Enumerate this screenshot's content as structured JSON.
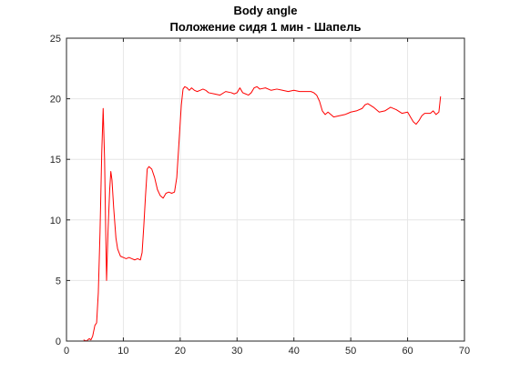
{
  "chart_data": {
    "type": "line",
    "title": "Body angle",
    "subtitle": "Положение сидя 1 мин - Шапель",
    "xlabel": "",
    "ylabel": "",
    "xlim": [
      0,
      70
    ],
    "ylim": [
      0,
      25
    ],
    "xticks": [
      0,
      10,
      20,
      30,
      40,
      50,
      60,
      70
    ],
    "yticks": [
      0,
      5,
      10,
      15,
      20,
      25
    ],
    "grid": true,
    "series": [
      {
        "color": "#ff0000",
        "points": [
          [
            3.0,
            0.1
          ],
          [
            3.5,
            0.0
          ],
          [
            4.0,
            0.2
          ],
          [
            4.3,
            0.1
          ],
          [
            4.6,
            0.4
          ],
          [
            5.0,
            1.3
          ],
          [
            5.3,
            1.5
          ],
          [
            5.6,
            4.0
          ],
          [
            5.9,
            9.0
          ],
          [
            6.2,
            15.5
          ],
          [
            6.45,
            19.2
          ],
          [
            6.7,
            15.0
          ],
          [
            6.9,
            9.0
          ],
          [
            7.05,
            5.0
          ],
          [
            7.3,
            9.0
          ],
          [
            7.6,
            12.5
          ],
          [
            7.8,
            14.0
          ],
          [
            8.0,
            13.3
          ],
          [
            8.3,
            11.0
          ],
          [
            8.7,
            8.5
          ],
          [
            9.0,
            7.6
          ],
          [
            9.5,
            7.0
          ],
          [
            10.0,
            6.9
          ],
          [
            10.5,
            6.8
          ],
          [
            11.0,
            6.9
          ],
          [
            11.5,
            6.8
          ],
          [
            12.0,
            6.7
          ],
          [
            12.5,
            6.8
          ],
          [
            13.0,
            6.7
          ],
          [
            13.3,
            7.3
          ],
          [
            13.6,
            9.5
          ],
          [
            13.9,
            12.0
          ],
          [
            14.2,
            14.2
          ],
          [
            14.5,
            14.4
          ],
          [
            15.0,
            14.2
          ],
          [
            15.5,
            13.5
          ],
          [
            16.0,
            12.5
          ],
          [
            16.5,
            12.0
          ],
          [
            17.0,
            11.8
          ],
          [
            17.5,
            12.2
          ],
          [
            18.0,
            12.3
          ],
          [
            18.5,
            12.2
          ],
          [
            19.0,
            12.3
          ],
          [
            19.4,
            13.5
          ],
          [
            19.8,
            16.5
          ],
          [
            20.2,
            19.5
          ],
          [
            20.5,
            20.8
          ],
          [
            20.8,
            21.0
          ],
          [
            21.2,
            20.9
          ],
          [
            21.6,
            20.7
          ],
          [
            22.0,
            20.9
          ],
          [
            22.5,
            20.7
          ],
          [
            23.0,
            20.6
          ],
          [
            23.5,
            20.7
          ],
          [
            24.0,
            20.8
          ],
          [
            24.5,
            20.7
          ],
          [
            25.0,
            20.5
          ],
          [
            26.0,
            20.4
          ],
          [
            27.0,
            20.3
          ],
          [
            28.0,
            20.6
          ],
          [
            29.0,
            20.5
          ],
          [
            29.5,
            20.4
          ],
          [
            30.0,
            20.5
          ],
          [
            30.5,
            20.9
          ],
          [
            31.0,
            20.5
          ],
          [
            31.5,
            20.4
          ],
          [
            32.0,
            20.3
          ],
          [
            32.5,
            20.5
          ],
          [
            33.0,
            20.9
          ],
          [
            33.5,
            21.0
          ],
          [
            34.0,
            20.8
          ],
          [
            35.0,
            20.9
          ],
          [
            36.0,
            20.7
          ],
          [
            37.0,
            20.8
          ],
          [
            38.0,
            20.7
          ],
          [
            39.0,
            20.6
          ],
          [
            40.0,
            20.7
          ],
          [
            41.0,
            20.6
          ],
          [
            42.0,
            20.6
          ],
          [
            43.0,
            20.6
          ],
          [
            43.5,
            20.5
          ],
          [
            44.0,
            20.3
          ],
          [
            44.5,
            19.8
          ],
          [
            45.0,
            19.0
          ],
          [
            45.5,
            18.7
          ],
          [
            46.0,
            18.9
          ],
          [
            47.0,
            18.5
          ],
          [
            48.0,
            18.6
          ],
          [
            49.0,
            18.7
          ],
          [
            50.0,
            18.9
          ],
          [
            51.0,
            19.0
          ],
          [
            52.0,
            19.2
          ],
          [
            52.5,
            19.5
          ],
          [
            53.0,
            19.6
          ],
          [
            54.0,
            19.3
          ],
          [
            55.0,
            18.9
          ],
          [
            56.0,
            19.0
          ],
          [
            57.0,
            19.3
          ],
          [
            58.0,
            19.1
          ],
          [
            59.0,
            18.8
          ],
          [
            60.0,
            18.9
          ],
          [
            60.5,
            18.5
          ],
          [
            61.0,
            18.1
          ],
          [
            61.5,
            17.9
          ],
          [
            62.0,
            18.2
          ],
          [
            62.5,
            18.6
          ],
          [
            63.0,
            18.8
          ],
          [
            64.0,
            18.8
          ],
          [
            64.5,
            19.0
          ],
          [
            65.0,
            18.7
          ],
          [
            65.5,
            18.9
          ],
          [
            65.8,
            20.2
          ]
        ]
      }
    ]
  }
}
